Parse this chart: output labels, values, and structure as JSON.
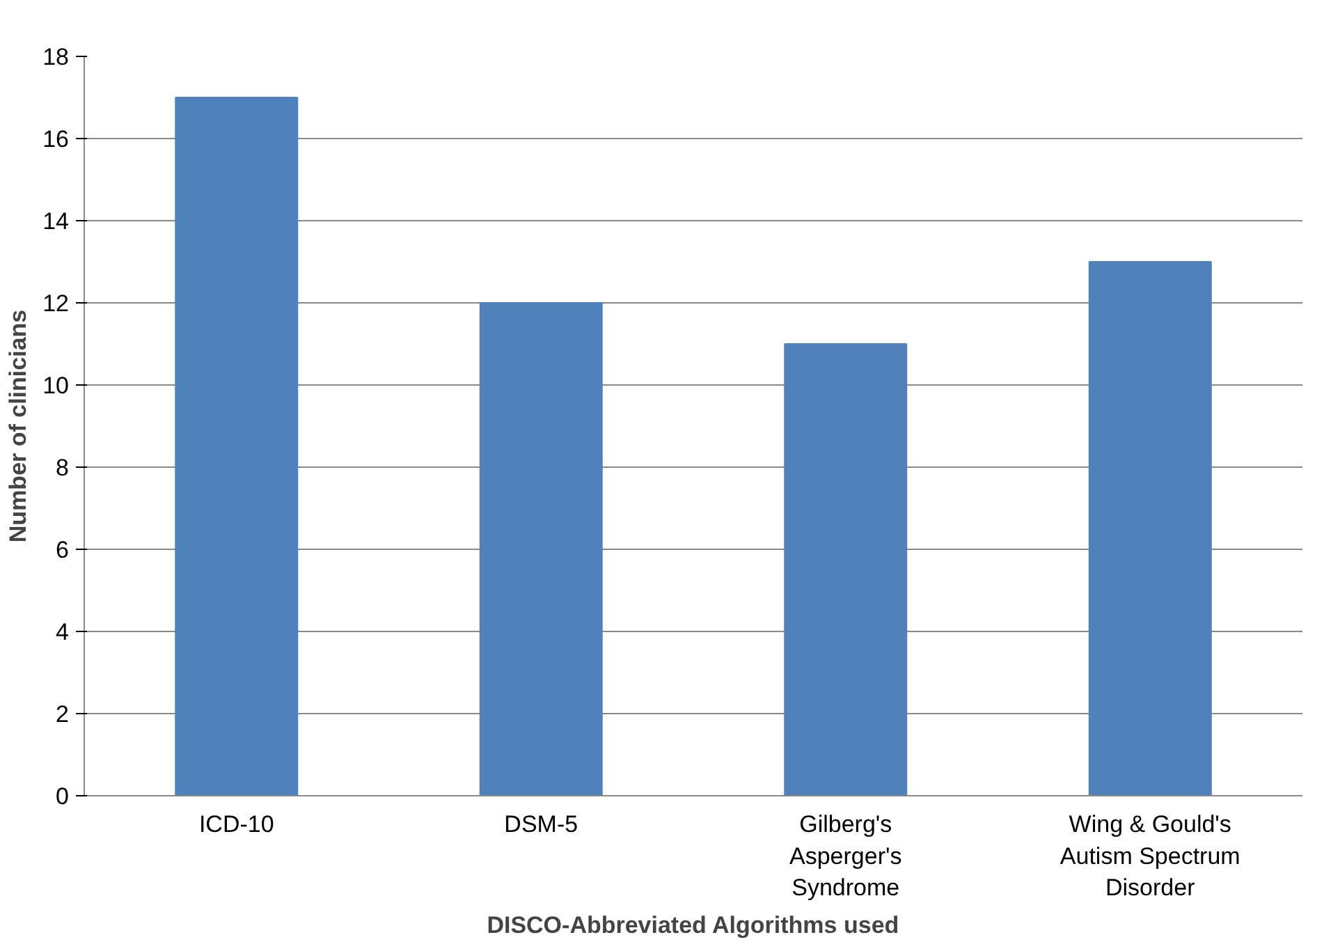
{
  "chart_data": {
    "type": "bar",
    "xlabel": "DISCO-Abbreviated Algorithms used",
    "ylabel": "Number of clinicians",
    "categories": [
      "ICD-10",
      "DSM-5",
      "Gilberg's\nAsperger's\nSyndrome",
      "Wing & Gould's\nAutism Spectrum\nDisorder"
    ],
    "values": [
      17,
      12,
      11,
      13
    ],
    "color": "#4f81bd",
    "ylim": [
      0,
      18
    ],
    "yticks": [
      0,
      2,
      4,
      6,
      8,
      10,
      12,
      14,
      16,
      18
    ],
    "grid": "y"
  }
}
